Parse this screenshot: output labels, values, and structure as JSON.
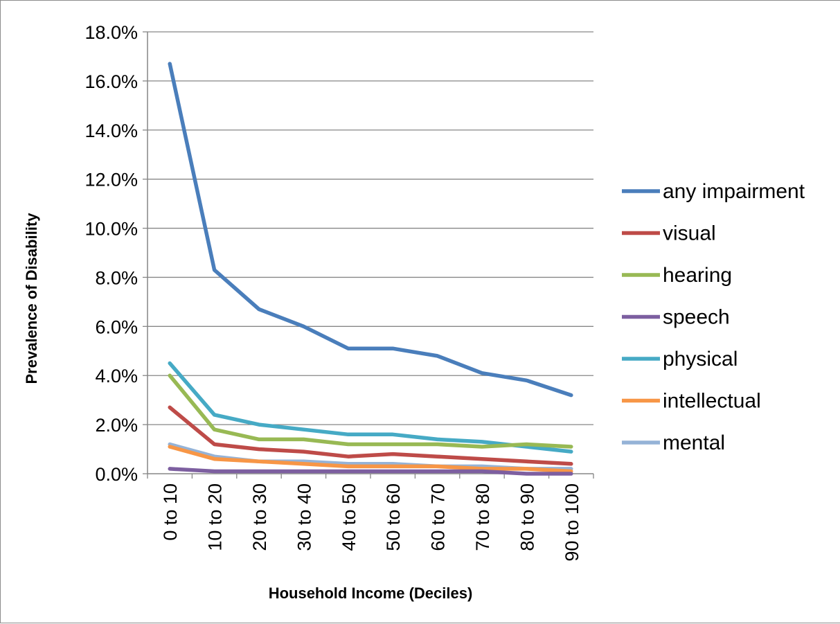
{
  "chart_data": {
    "type": "line",
    "title": "",
    "xlabel": "Household Income (Deciles)",
    "ylabel": "Prevalence of Disability",
    "ylim": [
      0,
      0.18
    ],
    "y_ticks": [
      "0.0%",
      "2.0%",
      "4.0%",
      "6.0%",
      "8.0%",
      "10.0%",
      "12.0%",
      "14.0%",
      "16.0%",
      "18.0%"
    ],
    "y_tick_values": [
      0,
      0.02,
      0.04,
      0.06,
      0.08,
      0.1,
      0.12,
      0.14,
      0.16,
      0.18
    ],
    "grid": true,
    "legend_position": "right",
    "categories": [
      "0 to 10",
      "10 to 20",
      "20 to 30",
      "30 to 40",
      "40 to 50",
      "50 to 60",
      "60 to 70",
      "70 to 80",
      "80 to 90",
      "90 to 100"
    ],
    "series": [
      {
        "name": "any impairment",
        "color": "#4a7ebb",
        "values": [
          0.167,
          0.083,
          0.067,
          0.06,
          0.051,
          0.051,
          0.048,
          0.041,
          0.038,
          0.032
        ]
      },
      {
        "name": "visual",
        "color": "#be4b48",
        "values": [
          0.027,
          0.012,
          0.01,
          0.009,
          0.007,
          0.008,
          0.007,
          0.006,
          0.005,
          0.004
        ]
      },
      {
        "name": "hearing",
        "color": "#98b954",
        "values": [
          0.04,
          0.018,
          0.014,
          0.014,
          0.012,
          0.012,
          0.012,
          0.011,
          0.012,
          0.011
        ]
      },
      {
        "name": "speech",
        "color": "#7d5fa0",
        "values": [
          0.002,
          0.001,
          0.001,
          0.001,
          0.001,
          0.001,
          0.001,
          0.001,
          0.0,
          0.0
        ]
      },
      {
        "name": "physical",
        "color": "#46aac5",
        "values": [
          0.045,
          0.024,
          0.02,
          0.018,
          0.016,
          0.016,
          0.014,
          0.013,
          0.011,
          0.009
        ]
      },
      {
        "name": "intellectual",
        "color": "#f79646",
        "values": [
          0.011,
          0.006,
          0.005,
          0.004,
          0.003,
          0.003,
          0.003,
          0.002,
          0.002,
          0.001
        ]
      },
      {
        "name": "mental",
        "color": "#95b3d7",
        "values": [
          0.012,
          0.007,
          0.005,
          0.005,
          0.004,
          0.004,
          0.003,
          0.003,
          0.002,
          0.002
        ]
      }
    ]
  }
}
